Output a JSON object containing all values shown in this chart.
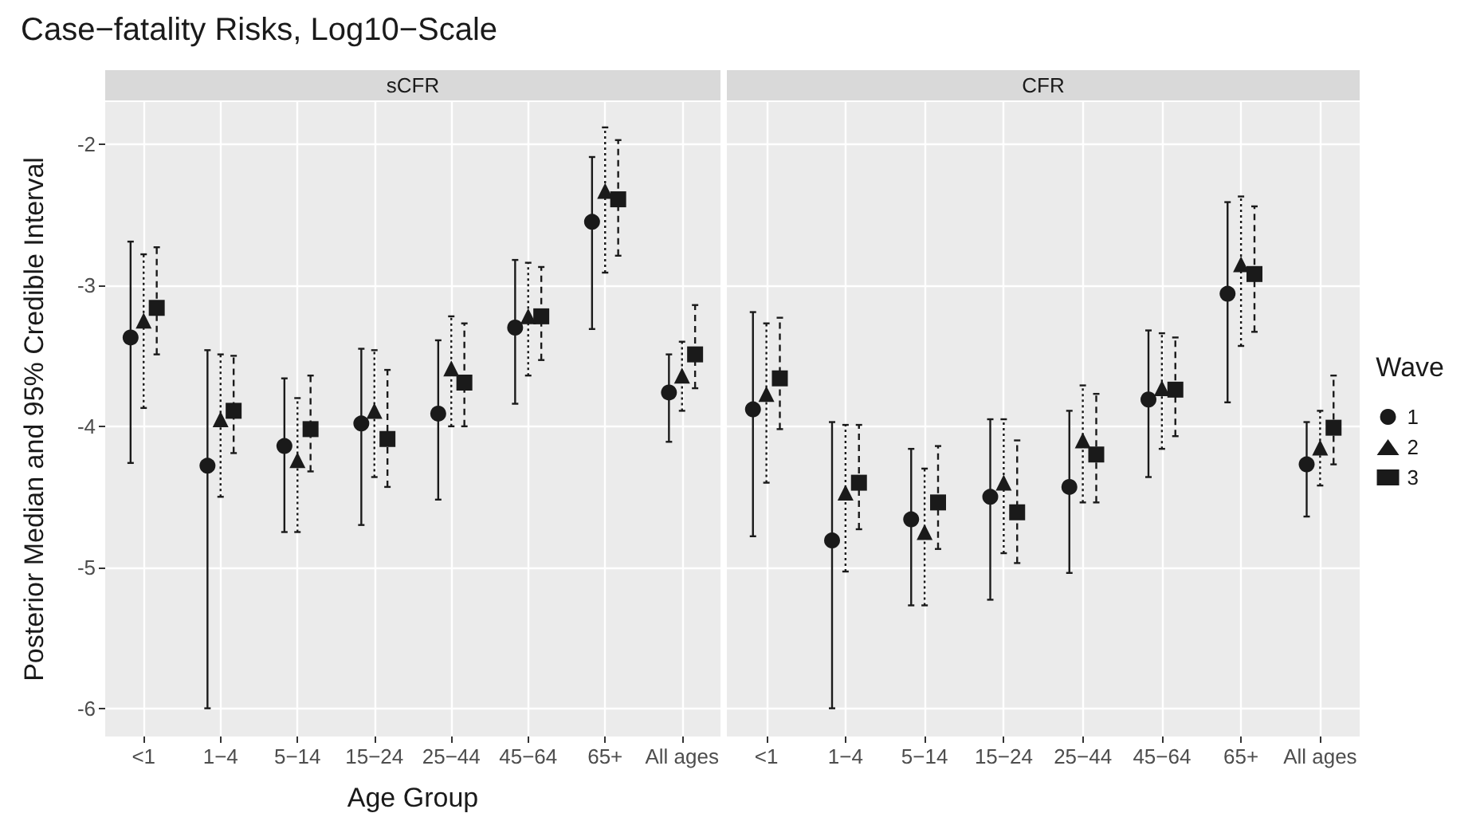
{
  "chart_data": [
    {
      "type": "scatter",
      "title": "Case−fatality Risks, Log10−Scale",
      "subtitle": "sCFR",
      "xlabel": "Age Group",
      "ylabel": "Posterior Median and 95% Credible Interval",
      "categories": [
        "<1",
        "1−4",
        "5−14",
        "15−24",
        "25−44",
        "45−64",
        "65+",
        "All ages"
      ],
      "ylim": [
        -6.2,
        -1.7
      ],
      "yticks": [
        -6,
        -5,
        -4,
        -3,
        -2
      ],
      "grid": true,
      "legend": false,
      "series": [
        {
          "color": "#1a1a1a",
          "marker": "circle",
          "line_style": "solid",
          "values": [
            -3.37,
            -4.28,
            -4.14,
            -3.98,
            -3.91,
            -3.3,
            -2.55,
            -3.76
          ],
          "errors": [
            [
              -4.26,
              -2.69
            ],
            [
              -6.0,
              -3.46
            ],
            [
              -4.75,
              -3.66
            ],
            [
              -4.7,
              -3.45
            ],
            [
              -4.52,
              -3.39
            ],
            [
              -3.84,
              -2.82
            ],
            [
              -3.31,
              -2.09
            ],
            [
              -4.11,
              -3.49
            ]
          ]
        },
        {
          "color": "#1a1a1a",
          "marker": "triangle",
          "line_style": "dotted",
          "values": [
            -3.25,
            -3.95,
            -4.24,
            -3.89,
            -3.59,
            -3.22,
            -2.33,
            -3.64
          ],
          "errors": [
            [
              -3.87,
              -2.78
            ],
            [
              -4.5,
              -3.49
            ],
            [
              -4.75,
              -3.8
            ],
            [
              -4.36,
              -3.46
            ],
            [
              -4.0,
              -3.22
            ],
            [
              -3.64,
              -2.84
            ],
            [
              -2.91,
              -1.88
            ],
            [
              -3.89,
              -3.4
            ]
          ]
        },
        {
          "color": "#1a1a1a",
          "marker": "square",
          "line_style": "dashed",
          "values": [
            -3.16,
            -3.89,
            -4.02,
            -4.09,
            -3.69,
            -3.22,
            -2.39,
            -3.49
          ],
          "errors": [
            [
              -3.49,
              -2.73
            ],
            [
              -4.19,
              -3.5
            ],
            [
              -4.32,
              -3.64
            ],
            [
              -4.43,
              -3.6
            ],
            [
              -4.0,
              -3.27
            ],
            [
              -3.53,
              -2.87
            ],
            [
              -2.79,
              -1.97
            ],
            [
              -3.73,
              -3.14
            ]
          ]
        }
      ]
    },
    {
      "type": "scatter",
      "subtitle": "CFR",
      "categories": [
        "<1",
        "1−4",
        "5−14",
        "15−24",
        "25−44",
        "45−64",
        "65+",
        "All ages"
      ],
      "ylim": [
        -6.2,
        -1.7
      ],
      "yticks": [
        -6,
        -5,
        -4,
        -3,
        -2
      ],
      "tick_labels": "x",
      "grid": true,
      "legend": "right",
      "legend_title": "Wave",
      "series": [
        {
          "name": "1",
          "color": "#1a1a1a",
          "marker": "circle",
          "line_style": "solid",
          "values": [
            -3.88,
            -4.81,
            -4.66,
            -4.5,
            -4.43,
            -3.81,
            -3.06,
            -4.27
          ],
          "errors": [
            [
              -4.78,
              -3.19
            ],
            [
              -6.0,
              -3.97
            ],
            [
              -5.27,
              -4.16
            ],
            [
              -5.23,
              -3.95
            ],
            [
              -5.04,
              -3.89
            ],
            [
              -4.36,
              -3.32
            ],
            [
              -3.83,
              -2.41
            ],
            [
              -4.64,
              -3.97
            ]
          ]
        },
        {
          "name": "2",
          "color": "#1a1a1a",
          "marker": "triangle",
          "line_style": "dotted",
          "values": [
            -3.77,
            -4.47,
            -4.75,
            -4.4,
            -4.1,
            -3.73,
            -2.85,
            -4.15
          ],
          "errors": [
            [
              -4.4,
              -3.27
            ],
            [
              -5.03,
              -3.99
            ],
            [
              -5.27,
              -4.3
            ],
            [
              -4.9,
              -3.95
            ],
            [
              -4.54,
              -3.71
            ],
            [
              -4.16,
              -3.34
            ],
            [
              -3.43,
              -2.37
            ],
            [
              -4.42,
              -3.89
            ]
          ]
        },
        {
          "name": "3",
          "color": "#1a1a1a",
          "marker": "square",
          "line_style": "dashed",
          "values": [
            -3.66,
            -4.4,
            -4.54,
            -4.61,
            -4.2,
            -3.74,
            -2.92,
            -4.01
          ],
          "errors": [
            [
              -4.02,
              -3.23
            ],
            [
              -4.73,
              -3.99
            ],
            [
              -4.87,
              -4.14
            ],
            [
              -4.97,
              -4.1
            ],
            [
              -4.54,
              -3.77
            ],
            [
              -4.07,
              -3.37
            ],
            [
              -3.33,
              -2.44
            ],
            [
              -4.27,
              -3.64
            ]
          ]
        }
      ]
    }
  ]
}
